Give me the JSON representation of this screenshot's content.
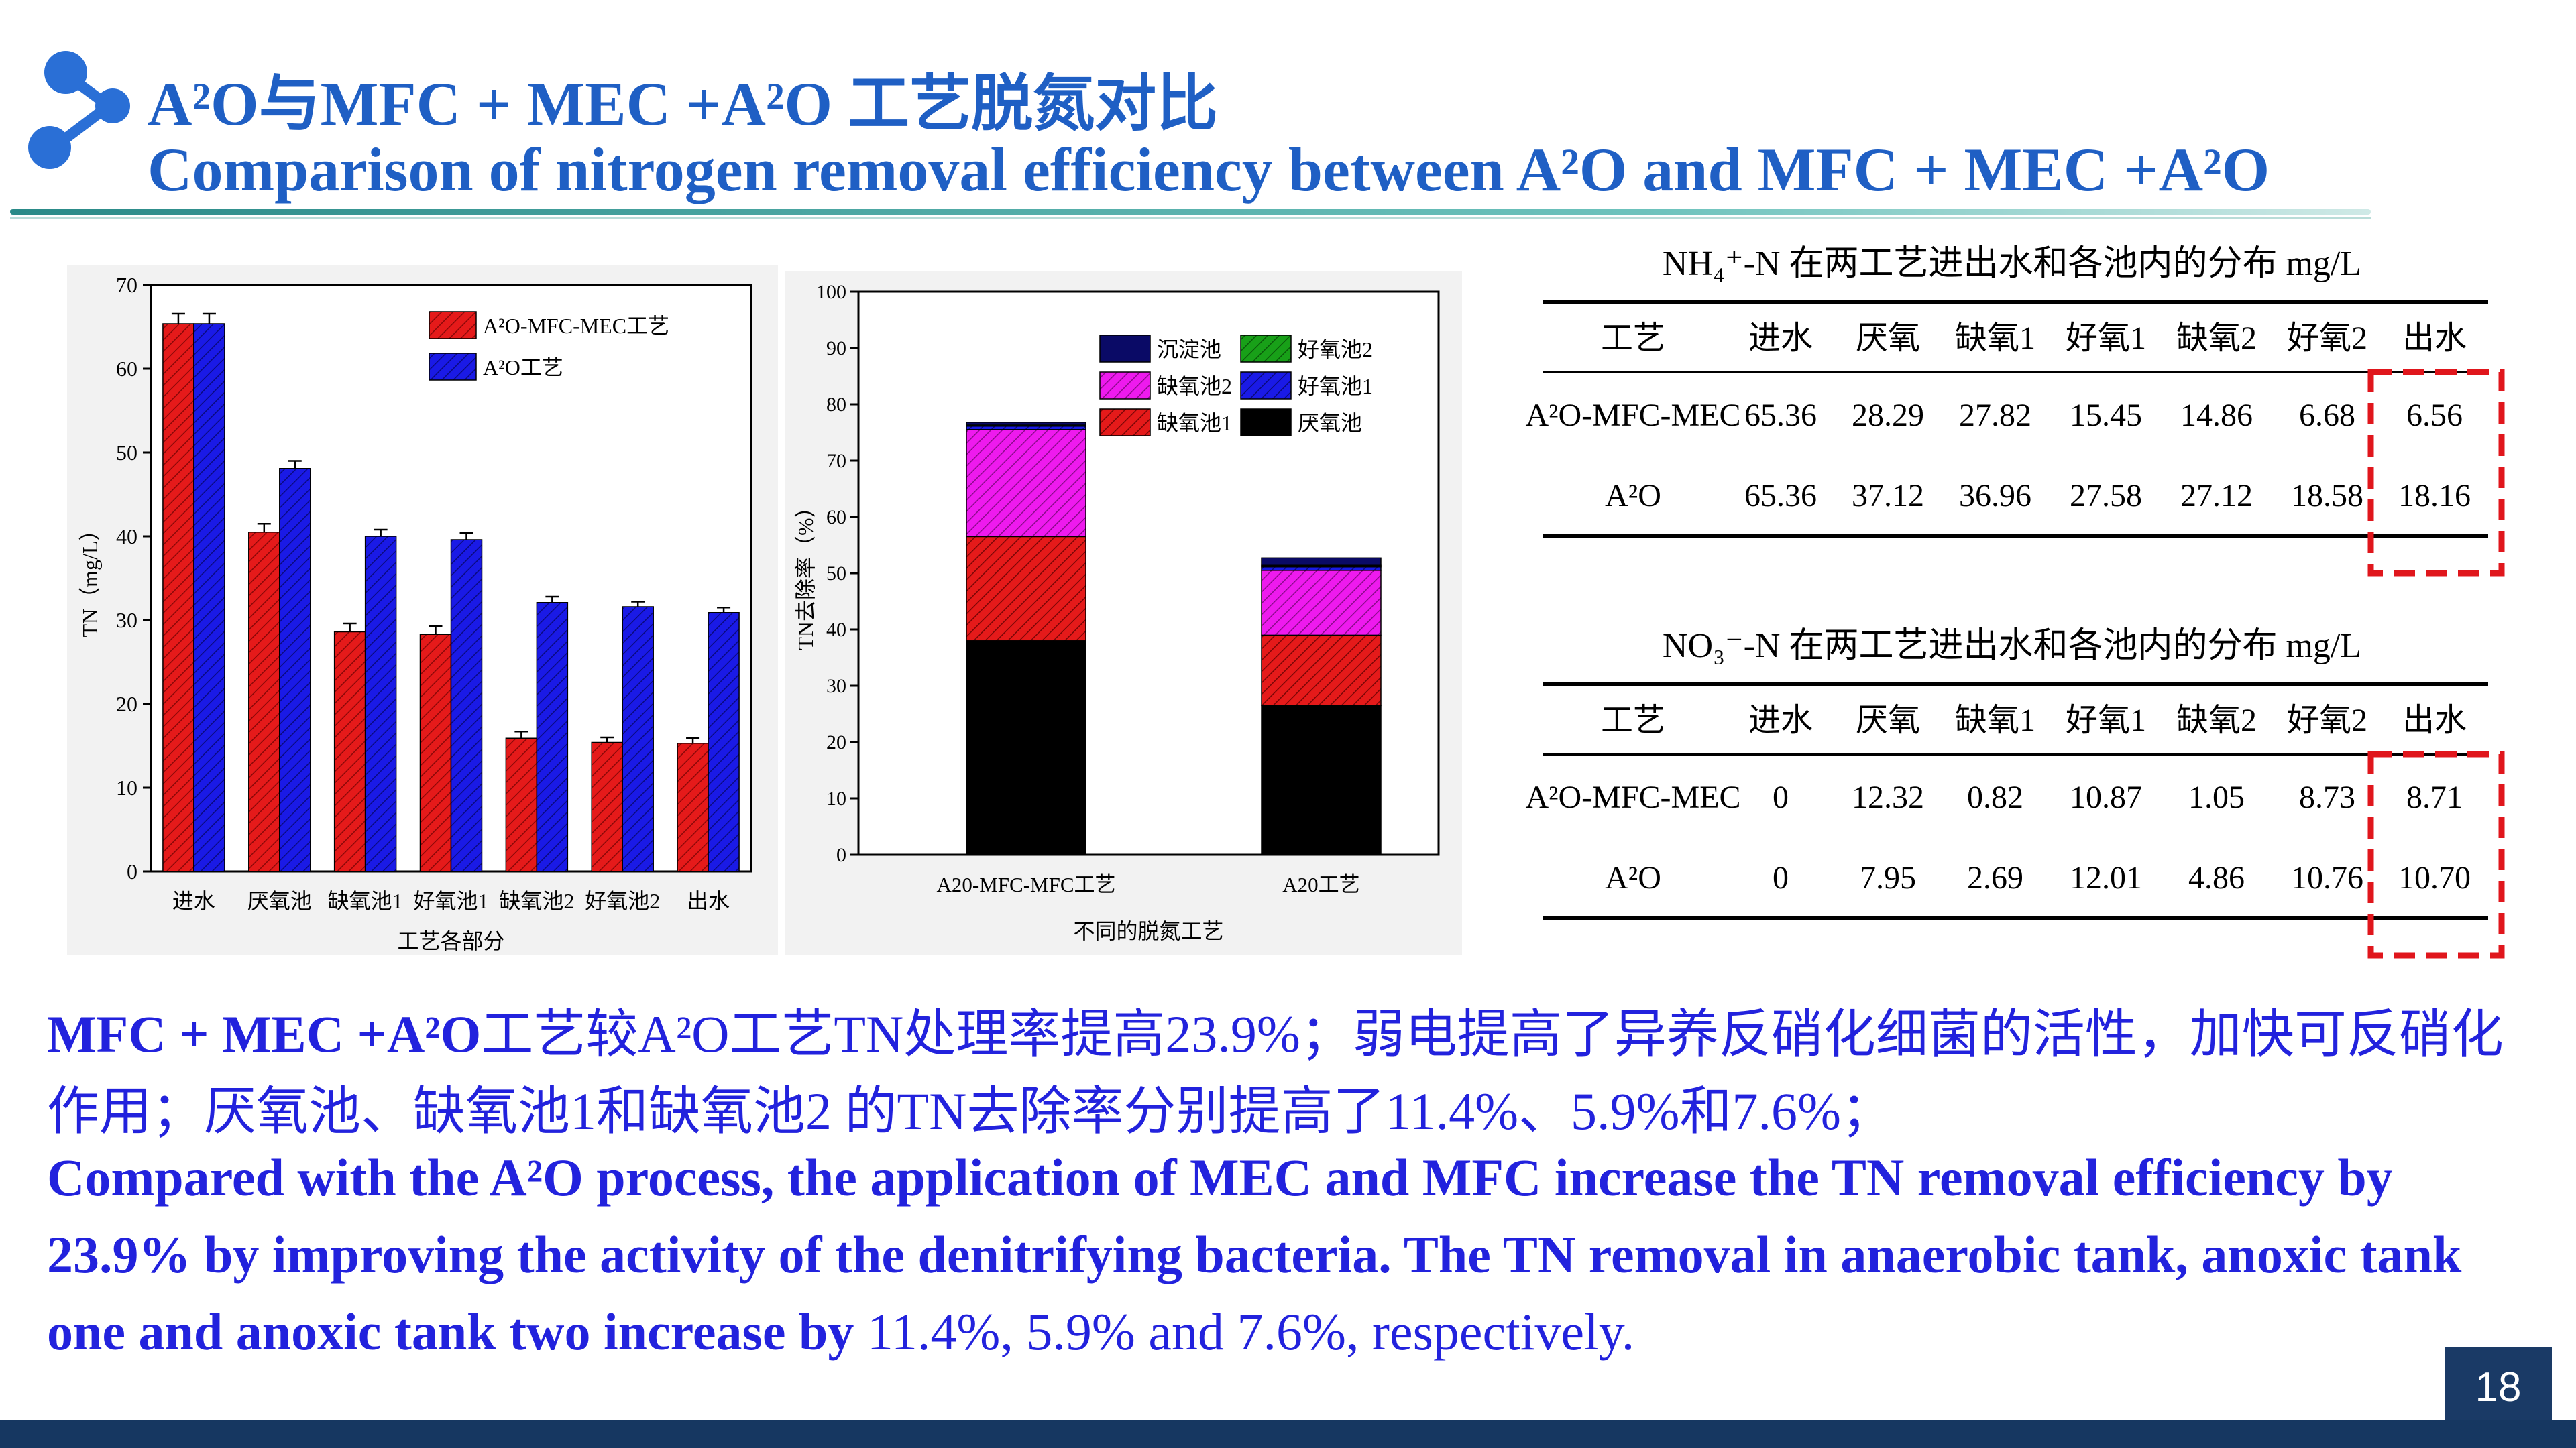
{
  "header": {
    "title_cn": "A²O与MFC + MEC +A²O 工艺脱氮对比",
    "title_en": "Comparison of nitrogen removal efficiency between A²O and MFC + MEC +A²O"
  },
  "colors": {
    "accent": "#1f5fc4",
    "footer": "#163761",
    "red_box": "#e0161c"
  },
  "chart_data": [
    {
      "type": "bar",
      "categories": [
        "进水",
        "厌氧池",
        "缺氧池1",
        "好氧池1",
        "缺氧池2",
        "好氧池2",
        "出水"
      ],
      "series": [
        {
          "name": "A²O-MFC-MEC工艺",
          "values": [
            65.36,
            40.5,
            28.6,
            28.3,
            15.9,
            15.4,
            15.3
          ],
          "color": "#e51a1a"
        },
        {
          "name": "A²O工艺",
          "values": [
            65.36,
            48.1,
            40.0,
            39.6,
            32.1,
            31.6,
            30.9
          ],
          "color": "#1a1ae6"
        }
      ],
      "errors": [
        [
          1.2,
          1.0,
          1.0,
          1.0,
          0.8,
          0.6,
          0.6
        ],
        [
          1.2,
          0.9,
          0.8,
          0.8,
          0.7,
          0.6,
          0.6
        ]
      ],
      "ylabel": "TN（mg/L）",
      "xlabel": "工艺各部分",
      "ylim": [
        0,
        70
      ],
      "yticks": [
        "0",
        "10",
        "20",
        "30",
        "40",
        "50",
        "60",
        "70"
      ],
      "legend_position": "top-right"
    },
    {
      "type": "bar",
      "stacked": true,
      "categories": [
        "A20-MFC-MFC工艺",
        "A20工艺"
      ],
      "series": [
        {
          "name": "厌氧池",
          "values": [
            38.0,
            26.5
          ],
          "color": "#000000"
        },
        {
          "name": "缺氧池1",
          "values": [
            18.5,
            12.5
          ],
          "color": "#e51a1a"
        },
        {
          "name": "缺氧池2",
          "values": [
            19.0,
            11.5
          ],
          "color": "#ee1aee"
        },
        {
          "name": "好氧池1",
          "values": [
            0.6,
            0.6
          ],
          "color": "#1a1ae6"
        },
        {
          "name": "好氧池2",
          "values": [
            0.2,
            0.3
          ],
          "color": "#18a018"
        },
        {
          "name": "沉淀池",
          "values": [
            0.5,
            1.3
          ],
          "color": "#0a0a66"
        }
      ],
      "ylabel": "TN去除率（%）",
      "xlabel": "不同的脱氮工艺",
      "ylim": [
        0,
        100
      ],
      "yticks": [
        "0",
        "10",
        "20",
        "30",
        "40",
        "50",
        "60",
        "70",
        "80",
        "90",
        "100"
      ],
      "legend_position": "top"
    },
    {
      "type": "table",
      "title": "NH₄⁺-N 在两工艺进出水和各池内的分布 mg/L",
      "columns": [
        "工艺",
        "进水",
        "厌氧",
        "缺氧1",
        "好氧1",
        "缺氧2",
        "好氧2",
        "出水"
      ],
      "rows": [
        [
          "A²O-MFC-MEC",
          "65.36",
          "28.29",
          "27.82",
          "15.45",
          "14.86",
          "6.68",
          "6.56"
        ],
        [
          "A²O",
          "65.36",
          "37.12",
          "36.96",
          "27.58",
          "27.12",
          "18.58",
          "18.16"
        ]
      ]
    },
    {
      "type": "table",
      "title": "NO₃⁻-N 在两工艺进出水和各池内的分布 mg/L",
      "columns": [
        "工艺",
        "进水",
        "厌氧",
        "缺氧1",
        "好氧1",
        "缺氧2",
        "好氧2",
        "出水"
      ],
      "rows": [
        [
          "A²O-MFC-MEC",
          "0",
          "12.32",
          "0.82",
          "10.87",
          "1.05",
          "8.73",
          "8.71"
        ],
        [
          "A²O",
          "0",
          "7.95",
          "2.69",
          "12.01",
          "4.86",
          "10.76",
          "10.70"
        ]
      ]
    }
  ],
  "body": {
    "cn_line1_bold": "MFC + MEC +A²O",
    "cn_line1_rest": "工艺较A²O工艺TN处理率提高23.9%；弱电提高了异养反硝化细菌的活性，加快可反硝化",
    "cn_line2": "作用；厌氧池、缺氧池1和缺氧池2 的TN去除率分别提高了11.4%、5.9%和7.6%；",
    "en_line1": "Compared with the A²O process, the application of MEC and MFC increase the TN removal efficiency by",
    "en_line2": "23.9% by improving the activity of the denitrifying bacteria. The TN removal in anaerobic tank, anoxic tank",
    "en_line3_bold": "one and anoxic tank two increase by",
    "en_line3_rest": " 11.4%, 5.9% and 7.6%, respectively."
  },
  "page_number": "18"
}
